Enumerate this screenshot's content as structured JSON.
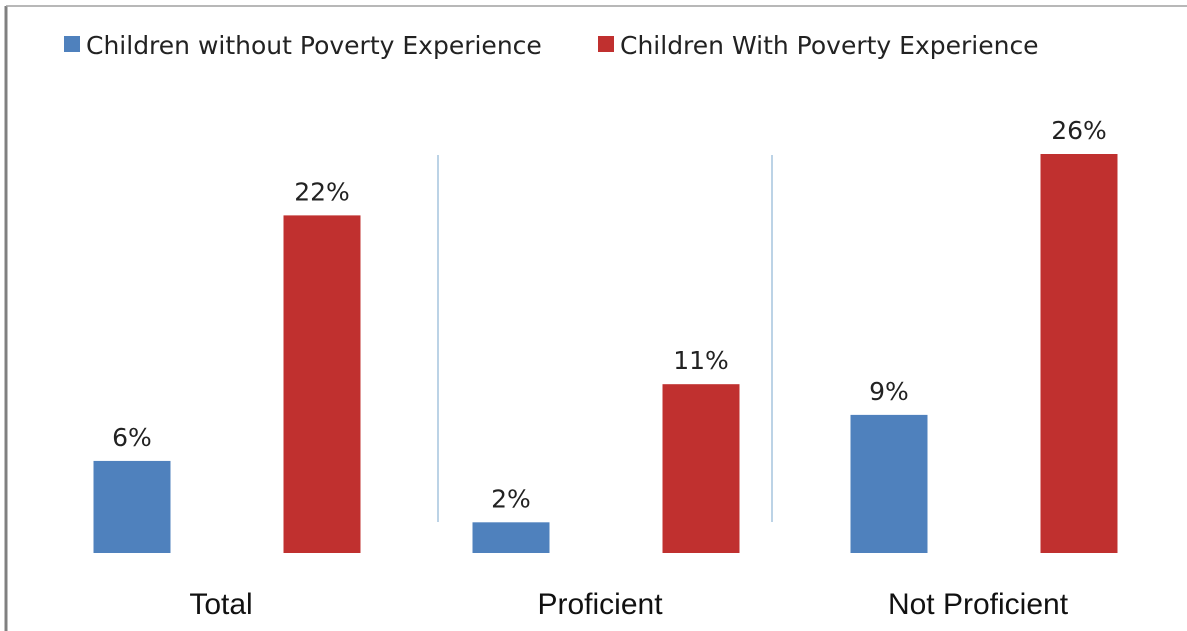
{
  "chart_data": {
    "type": "bar",
    "categories": [
      "Total",
      "Proficient",
      "Not Proficient"
    ],
    "series": [
      {
        "name": "Children without Poverty Experience",
        "color": "#4f81bd",
        "values": [
          6,
          2,
          9
        ],
        "labels": [
          "6%",
          "2%",
          "9%"
        ]
      },
      {
        "name": "Children With Poverty Experience",
        "color": "#c0302f",
        "values": [
          22,
          11,
          26
        ],
        "labels": [
          "22%",
          "11%",
          "26%"
        ]
      }
    ],
    "ylim": [
      0,
      26
    ],
    "legend_position": "top-left",
    "grid": false,
    "category_separators": true
  }
}
